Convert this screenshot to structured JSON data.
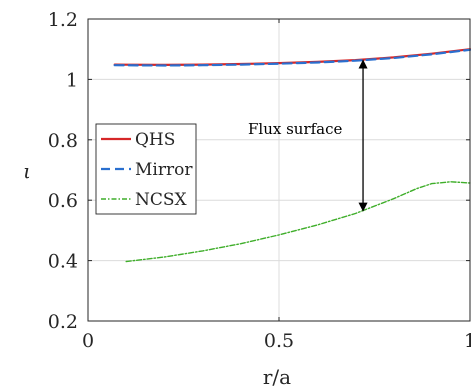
{
  "chart_data": {
    "type": "line",
    "xlabel": "r/a",
    "ylabel": "ι",
    "xlim": [
      0,
      1
    ],
    "ylim": [
      0.2,
      1.2
    ],
    "xticks": [
      0,
      0.5,
      1
    ],
    "xtick_labels": [
      "0",
      "0.5",
      "1"
    ],
    "yticks": [
      0.2,
      0.4,
      0.6,
      0.8,
      1.0,
      1.2
    ],
    "ytick_labels": [
      "0.2",
      "0.4",
      "0.6",
      "0.8",
      "1",
      "1.2"
    ],
    "grid": true,
    "legend_position": "center-left",
    "series": [
      {
        "name": "QHS",
        "color": "#d62728",
        "style": "solid",
        "x": [
          0.07,
          0.2,
          0.3,
          0.4,
          0.5,
          0.6,
          0.7,
          0.8,
          0.9,
          1.0
        ],
        "y": [
          1.049,
          1.048,
          1.049,
          1.051,
          1.054,
          1.058,
          1.064,
          1.073,
          1.085,
          1.1
        ]
      },
      {
        "name": "Mirror",
        "color": "#2a6fcf",
        "style": "dashed",
        "x": [
          0.07,
          0.2,
          0.3,
          0.4,
          0.5,
          0.6,
          0.7,
          0.8,
          0.9,
          1.0
        ],
        "y": [
          1.047,
          1.046,
          1.047,
          1.049,
          1.052,
          1.056,
          1.062,
          1.071,
          1.083,
          1.098
        ]
      },
      {
        "name": "NCSX",
        "color": "#3fae2a",
        "style": "dashdot",
        "x": [
          0.1,
          0.2,
          0.3,
          0.4,
          0.5,
          0.6,
          0.7,
          0.8,
          0.86,
          0.9,
          0.95,
          1.0
        ],
        "y": [
          0.397,
          0.412,
          0.432,
          0.456,
          0.485,
          0.518,
          0.556,
          0.605,
          0.638,
          0.655,
          0.661,
          0.657
        ]
      }
    ],
    "annotations": [
      {
        "text": "Flux surface",
        "arrow_x": 0.72,
        "arrow_y1": 0.565,
        "arrow_y2": 1.063
      }
    ]
  }
}
